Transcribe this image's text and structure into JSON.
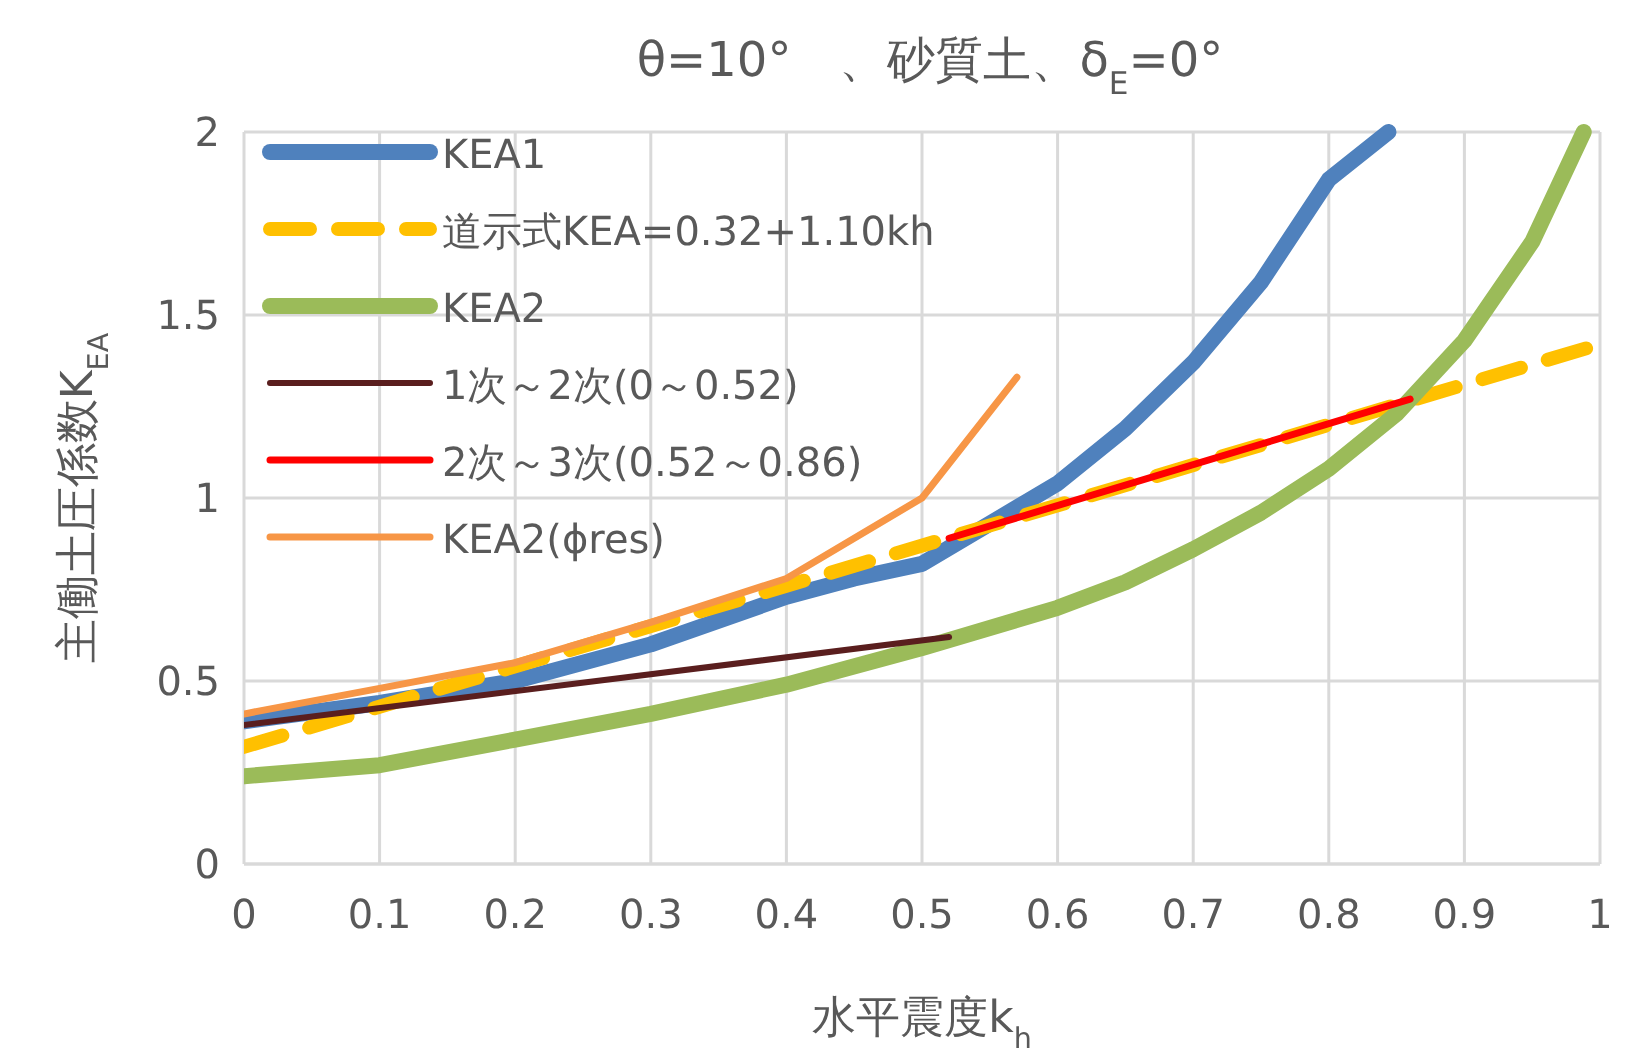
{
  "chart_data": {
    "type": "line",
    "title": "θ=10°　、砂質土、δ$_{E}$=0°",
    "xlabel": "水平震度k$_{h}$",
    "ylabel": "主働土圧係数K$_{EA}$",
    "xlim": [
      0,
      1
    ],
    "ylim": [
      0,
      2
    ],
    "xticks": [
      0,
      0.1,
      0.2,
      0.3,
      0.4,
      0.5,
      0.6,
      0.7,
      0.8,
      0.9,
      1
    ],
    "yticks": [
      0,
      0.5,
      1,
      1.5,
      2
    ],
    "grid": true,
    "legend": "top left",
    "marker": "none",
    "series": [
      {
        "name": "KEA1",
        "color": "#4f81bd",
        "x": [
          0,
          0.1,
          0.2,
          0.3,
          0.4,
          0.45,
          0.5,
          0.6,
          0.65,
          0.7,
          0.75,
          0.8,
          0.844
        ],
        "values": [
          0.39,
          0.44,
          0.5,
          0.6,
          0.73,
          0.78,
          0.82,
          1.04,
          1.19,
          1.37,
          1.59,
          1.87,
          2
        ]
      },
      {
        "name": "道示式KEA=0.32+1.10kh",
        "color": "#ffc000",
        "line_style": "dashed",
        "x": [
          0,
          1
        ],
        "values": [
          0.32,
          1.42
        ]
      },
      {
        "name": "KEA2",
        "color": "#9bbb59",
        "x": [
          0,
          0.1,
          0.2,
          0.3,
          0.4,
          0.5,
          0.6,
          0.65,
          0.7,
          0.75,
          0.8,
          0.85,
          0.9,
          0.95,
          0.988
        ],
        "values": [
          0.24,
          0.27,
          0.34,
          0.41,
          0.49,
          0.59,
          0.7,
          0.77,
          0.86,
          0.96,
          1.08,
          1.23,
          1.43,
          1.7,
          2
        ]
      },
      {
        "name": "1次～2次(0～0.52)",
        "color": "#5a1e1e",
        "x": [
          0,
          0.52
        ],
        "values": [
          0.38,
          0.62
        ]
      },
      {
        "name": "2次～3次(0.52～0.86)",
        "color": "#ff0000",
        "x": [
          0.52,
          0.86
        ],
        "values": [
          0.89,
          1.27
        ]
      },
      {
        "name": "KEA2(ϕres)",
        "color": "#f79646",
        "x": [
          0,
          0.1,
          0.2,
          0.3,
          0.4,
          0.5,
          0.57
        ],
        "values": [
          0.41,
          0.48,
          0.55,
          0.66,
          0.78,
          1.0,
          1.33
        ]
      }
    ]
  }
}
